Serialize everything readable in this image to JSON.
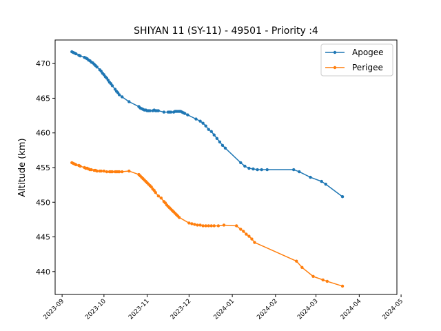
{
  "chart_data": {
    "type": "line",
    "title": "SHIYAN 11 (SY-11) - 49501 - Priority :4",
    "xlabel": "",
    "ylabel": "Altitude (km)",
    "x_type": "date",
    "xlim": [
      "2023-08-27",
      "2024-04-28"
    ],
    "ylim": [
      436.7,
      473.4
    ],
    "xticks": [
      "2023-09-01",
      "2023-10-01",
      "2023-11-01",
      "2023-12-01",
      "2024-01-01",
      "2024-02-01",
      "2024-03-01",
      "2024-04-01",
      "2024-05-01"
    ],
    "xtick_labels": [
      "2023-09",
      "2023-10",
      "2023-11",
      "2023-12",
      "2024-01",
      "2024-02",
      "2024-03",
      "2024-04",
      "2024-05"
    ],
    "yticks": [
      440,
      445,
      450,
      455,
      460,
      465,
      470
    ],
    "grid": false,
    "legend_position": "top-right",
    "series": [
      {
        "name": "Apogee",
        "color": "#1f77b4",
        "points": [
          [
            "2023-09-08",
            471.7
          ],
          [
            "2023-09-09",
            471.6
          ],
          [
            "2023-09-10",
            471.5
          ],
          [
            "2023-09-11",
            471.4
          ],
          [
            "2023-09-13",
            471.2
          ],
          [
            "2023-09-14",
            471.1
          ],
          [
            "2023-09-17",
            470.9
          ],
          [
            "2023-09-18",
            470.8
          ],
          [
            "2023-09-19",
            470.7
          ],
          [
            "2023-09-20",
            470.5
          ],
          [
            "2023-09-21",
            470.4
          ],
          [
            "2023-09-22",
            470.2
          ],
          [
            "2023-09-23",
            470.1
          ],
          [
            "2023-09-24",
            469.9
          ],
          [
            "2023-09-25",
            469.7
          ],
          [
            "2023-09-26",
            469.5
          ],
          [
            "2023-09-28",
            469.1
          ],
          [
            "2023-09-29",
            468.9
          ],
          [
            "2023-09-30",
            468.6
          ],
          [
            "2023-10-01",
            468.4
          ],
          [
            "2023-10-02",
            468.1
          ],
          [
            "2023-10-03",
            467.9
          ],
          [
            "2023-10-04",
            467.6
          ],
          [
            "2023-10-05",
            467.3
          ],
          [
            "2023-10-06",
            467.1
          ],
          [
            "2023-10-07",
            466.8
          ],
          [
            "2023-10-09",
            466.3
          ],
          [
            "2023-10-10",
            466.0
          ],
          [
            "2023-10-11",
            465.8
          ],
          [
            "2023-10-12",
            465.5
          ],
          [
            "2023-10-14",
            465.2
          ],
          [
            "2023-10-19",
            464.5
          ],
          [
            "2023-10-26",
            463.8
          ],
          [
            "2023-10-27",
            463.6
          ],
          [
            "2023-10-28",
            463.5
          ],
          [
            "2023-10-29",
            463.4
          ],
          [
            "2023-10-30",
            463.3
          ],
          [
            "2023-10-31",
            463.3
          ],
          [
            "2023-11-01",
            463.2
          ],
          [
            "2023-11-02",
            463.2
          ],
          [
            "2023-11-03",
            463.2
          ],
          [
            "2023-11-05",
            463.2
          ],
          [
            "2023-11-06",
            463.3
          ],
          [
            "2023-11-07",
            463.2
          ],
          [
            "2023-11-08",
            463.2
          ],
          [
            "2023-11-09",
            463.2
          ],
          [
            "2023-11-13",
            463.0
          ],
          [
            "2023-11-16",
            463.0
          ],
          [
            "2023-11-17",
            463.0
          ],
          [
            "2023-11-18",
            463.0
          ],
          [
            "2023-11-20",
            463.0
          ],
          [
            "2023-11-21",
            463.1
          ],
          [
            "2023-11-22",
            463.1
          ],
          [
            "2023-11-23",
            463.1
          ],
          [
            "2023-11-24",
            463.1
          ],
          [
            "2023-11-25",
            463.1
          ],
          [
            "2023-11-26",
            463.0
          ],
          [
            "2023-11-27",
            462.9
          ],
          [
            "2023-11-28",
            462.8
          ],
          [
            "2023-11-30",
            462.6
          ],
          [
            "2023-12-06",
            462.0
          ],
          [
            "2023-12-09",
            461.7
          ],
          [
            "2023-12-11",
            461.4
          ],
          [
            "2023-12-13",
            461.0
          ],
          [
            "2023-12-15",
            460.5
          ],
          [
            "2023-12-17",
            460.2
          ],
          [
            "2023-12-19",
            459.7
          ],
          [
            "2023-12-21",
            459.2
          ],
          [
            "2023-12-23",
            458.7
          ],
          [
            "2023-12-25",
            458.2
          ],
          [
            "2023-12-27",
            457.8
          ],
          [
            "2024-01-07",
            455.7
          ],
          [
            "2024-01-10",
            455.2
          ],
          [
            "2024-01-13",
            454.9
          ],
          [
            "2024-01-16",
            454.8
          ],
          [
            "2024-01-19",
            454.7
          ],
          [
            "2024-01-22",
            454.7
          ],
          [
            "2024-01-26",
            454.7
          ],
          [
            "2024-02-14",
            454.7
          ],
          [
            "2024-02-18",
            454.4
          ],
          [
            "2024-02-26",
            453.6
          ],
          [
            "2024-03-05",
            453.0
          ],
          [
            "2024-03-08",
            452.6
          ],
          [
            "2024-03-20",
            450.8
          ]
        ]
      },
      {
        "name": "Perigee",
        "color": "#ff7f0e",
        "points": [
          [
            "2023-09-08",
            455.7
          ],
          [
            "2023-09-09",
            455.6
          ],
          [
            "2023-09-10",
            455.5
          ],
          [
            "2023-09-11",
            455.4
          ],
          [
            "2023-09-13",
            455.3
          ],
          [
            "2023-09-14",
            455.2
          ],
          [
            "2023-09-17",
            455.0
          ],
          [
            "2023-09-18",
            454.9
          ],
          [
            "2023-09-19",
            454.9
          ],
          [
            "2023-09-20",
            454.8
          ],
          [
            "2023-09-21",
            454.7
          ],
          [
            "2023-09-22",
            454.7
          ],
          [
            "2023-09-24",
            454.6
          ],
          [
            "2023-09-25",
            454.6
          ],
          [
            "2023-09-26",
            454.5
          ],
          [
            "2023-09-28",
            454.5
          ],
          [
            "2023-09-29",
            454.5
          ],
          [
            "2023-10-01",
            454.5
          ],
          [
            "2023-10-03",
            454.4
          ],
          [
            "2023-10-05",
            454.4
          ],
          [
            "2023-10-06",
            454.4
          ],
          [
            "2023-10-07",
            454.4
          ],
          [
            "2023-10-09",
            454.4
          ],
          [
            "2023-10-10",
            454.4
          ],
          [
            "2023-10-11",
            454.4
          ],
          [
            "2023-10-12",
            454.4
          ],
          [
            "2023-10-14",
            454.4
          ],
          [
            "2023-10-19",
            454.5
          ],
          [
            "2023-10-26",
            454.0
          ],
          [
            "2023-10-27",
            453.8
          ],
          [
            "2023-10-28",
            453.6
          ],
          [
            "2023-10-29",
            453.4
          ],
          [
            "2023-10-30",
            453.2
          ],
          [
            "2023-10-31",
            453.0
          ],
          [
            "2023-11-01",
            452.8
          ],
          [
            "2023-11-02",
            452.6
          ],
          [
            "2023-11-03",
            452.4
          ],
          [
            "2023-11-04",
            452.2
          ],
          [
            "2023-11-05",
            451.9
          ],
          [
            "2023-11-06",
            451.7
          ],
          [
            "2023-11-07",
            451.4
          ],
          [
            "2023-11-09",
            450.9
          ],
          [
            "2023-11-11",
            450.6
          ],
          [
            "2023-11-13",
            450.1
          ],
          [
            "2023-11-14",
            449.9
          ],
          [
            "2023-11-15",
            449.6
          ],
          [
            "2023-11-16",
            449.4
          ],
          [
            "2023-11-17",
            449.2
          ],
          [
            "2023-11-18",
            449.0
          ],
          [
            "2023-11-19",
            448.8
          ],
          [
            "2023-11-20",
            448.6
          ],
          [
            "2023-11-21",
            448.4
          ],
          [
            "2023-11-22",
            448.2
          ],
          [
            "2023-11-23",
            448.0
          ],
          [
            "2023-11-24",
            447.8
          ],
          [
            "2023-12-01",
            447.0
          ],
          [
            "2023-12-03",
            446.9
          ],
          [
            "2023-12-05",
            446.8
          ],
          [
            "2023-12-07",
            446.7
          ],
          [
            "2023-12-09",
            446.7
          ],
          [
            "2023-12-11",
            446.6
          ],
          [
            "2023-12-13",
            446.6
          ],
          [
            "2023-12-15",
            446.6
          ],
          [
            "2023-12-17",
            446.6
          ],
          [
            "2023-12-19",
            446.6
          ],
          [
            "2023-12-22",
            446.6
          ],
          [
            "2023-12-26",
            446.7
          ],
          [
            "2024-01-04",
            446.6
          ],
          [
            "2024-01-07",
            446.1
          ],
          [
            "2024-01-09",
            445.8
          ],
          [
            "2024-01-11",
            445.4
          ],
          [
            "2024-01-13",
            445.1
          ],
          [
            "2024-01-15",
            444.7
          ],
          [
            "2024-01-17",
            444.2
          ],
          [
            "2024-02-16",
            441.5
          ],
          [
            "2024-02-20",
            440.6
          ],
          [
            "2024-02-28",
            439.3
          ],
          [
            "2024-03-06",
            438.8
          ],
          [
            "2024-03-09",
            438.6
          ],
          [
            "2024-03-20",
            437.9
          ]
        ]
      }
    ]
  }
}
